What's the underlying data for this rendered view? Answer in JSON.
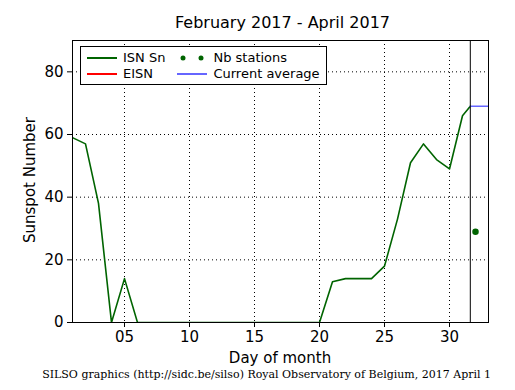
{
  "chart_data": {
    "type": "line",
    "title": "February 2017 - April 2017",
    "x_label": "Day of month",
    "y_label": "Sunspot Number",
    "caption": "SILSO graphics (http://sidc.be/silso) Royal Observatory of Belgium, 2017 April 1",
    "x": [
      1,
      2,
      3,
      4,
      5,
      6,
      7,
      8,
      9,
      10,
      11,
      12,
      13,
      14,
      15,
      16,
      17,
      18,
      19,
      20,
      21,
      22,
      23,
      24,
      25,
      26,
      27,
      28,
      29,
      30,
      31,
      31.6
    ],
    "series": [
      {
        "name": "ISN Sn",
        "color": "#006400",
        "type": "line",
        "values": [
          59,
          57,
          38,
          0,
          14,
          0,
          0,
          0,
          0,
          0,
          0,
          0,
          0,
          0,
          0,
          0,
          0,
          0,
          0,
          0,
          13,
          14,
          14,
          14,
          18,
          33,
          51,
          57,
          52,
          49,
          66,
          69
        ]
      },
      {
        "name": "EISN",
        "color": "#ff0000",
        "type": "line",
        "values": [
          null,
          null,
          null,
          null,
          null,
          null,
          null,
          null,
          null,
          null,
          null,
          null,
          null,
          null,
          null,
          null,
          null,
          null,
          null,
          null,
          null,
          null,
          null,
          null,
          null,
          null,
          null,
          null,
          null,
          null,
          null,
          null
        ]
      },
      {
        "name": "Nb stations",
        "color": "#006400",
        "type": "scatter",
        "marker": "o",
        "x": [
          32
        ],
        "values": [
          29
        ]
      },
      {
        "name": "Current average",
        "color": "#6666ff",
        "type": "line",
        "x": [
          31.6,
          33
        ],
        "values": [
          69,
          69
        ]
      }
    ],
    "current_day": 31.6,
    "xlim": [
      1,
      33
    ],
    "xticks": [
      {
        "value": 5,
        "label": "05"
      },
      10,
      15,
      20,
      25,
      30
    ],
    "ylim": [
      0,
      90
    ],
    "yticks": [
      0,
      20,
      40,
      60,
      80
    ],
    "grid": true,
    "legend": "upper left"
  }
}
